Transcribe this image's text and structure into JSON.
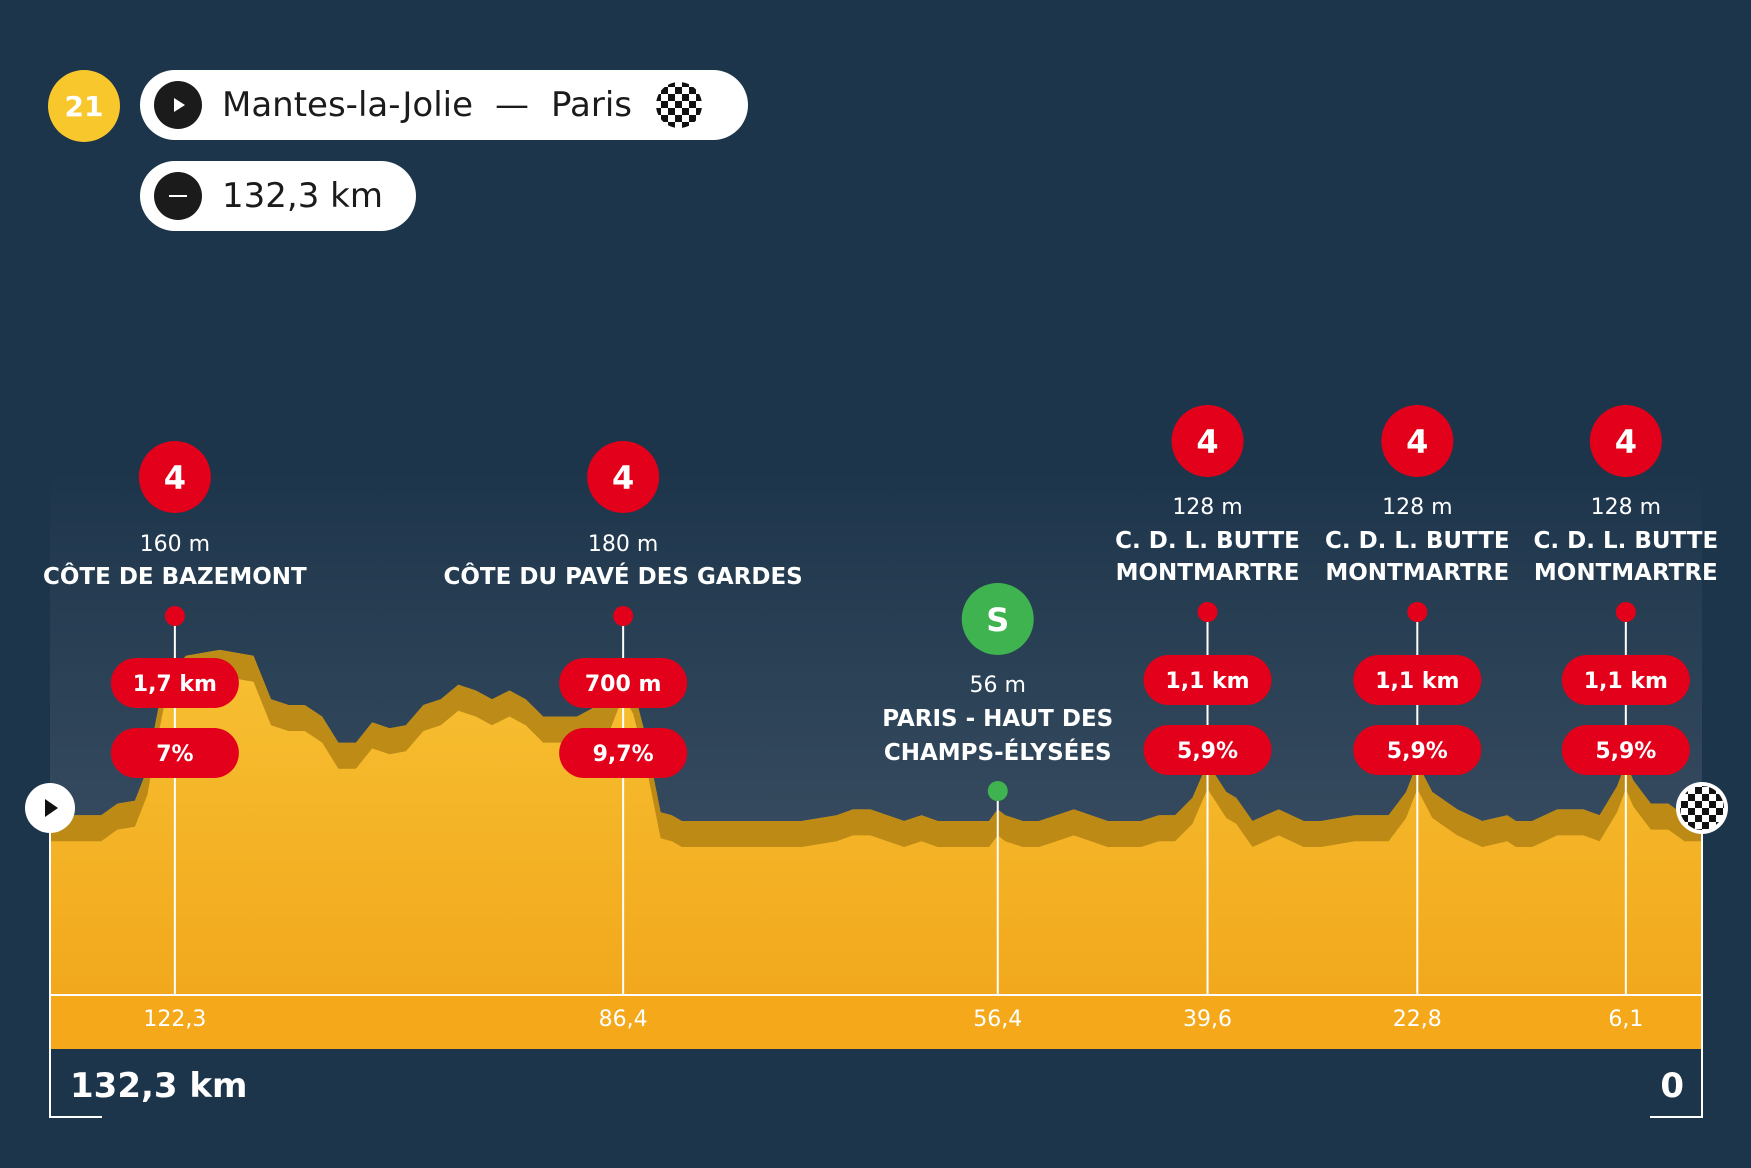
{
  "stage_number": "21",
  "route": {
    "start": "Mantes-la-Jolie",
    "separator": "—",
    "finish": "Paris",
    "distance": "132,3 km"
  },
  "colors": {
    "background": "#1d354b",
    "terrain": "#f4b324",
    "climb_marker": "#e2001a",
    "sprint_marker": "#3fb34f",
    "stage_badge": "#f7c72c"
  },
  "icons": {
    "start": "play-icon",
    "finish": "checkered-flag-icon",
    "distance": "distance-dash-icon"
  },
  "chart_data": {
    "type": "area",
    "title": "",
    "xlabel": "",
    "ylabel": "",
    "x_direction": "remaining distance (km), decreasing left to right",
    "xlim": [
      132.3,
      0
    ],
    "axis_end_labels": {
      "left": "132,3 km",
      "right": "0"
    },
    "ylim": [
      0,
      200
    ],
    "profile": {
      "name": "",
      "x": [
        132.3,
        130.9,
        128.2,
        126.9,
        125.5,
        124.5,
        123.8,
        123.1,
        122.3,
        121.4,
        118.7,
        116.0,
        114.6,
        113.2,
        111.9,
        110.5,
        109.2,
        107.8,
        106.5,
        105.1,
        103.8,
        102.4,
        101.0,
        99.6,
        98.2,
        96.9,
        95.5,
        94.2,
        92.8,
        91.5,
        90.1,
        88.8,
        87.4,
        86.4,
        85.6,
        84.7,
        83.4,
        82.5,
        81.7,
        80.2,
        77.5,
        74.8,
        72.1,
        69.3,
        68.0,
        66.6,
        63.9,
        62.5,
        61.2,
        59.8,
        58.5,
        57.1,
        56.4,
        55.8,
        54.4,
        53.1,
        51.7,
        50.3,
        47.6,
        44.9,
        43.5,
        42.2,
        40.8,
        39.6,
        38.1,
        37.3,
        36.0,
        33.9,
        31.9,
        30.5,
        27.8,
        25.1,
        23.7,
        22.8,
        21.6,
        19.6,
        17.6,
        15.6,
        14.9,
        13.6,
        11.6,
        9.5,
        8.2,
        6.8,
        6.1,
        5.5,
        4.1,
        2.7,
        1.4,
        0
      ],
      "y": [
        62,
        62,
        62,
        66,
        67,
        78,
        95,
        110,
        113,
        117,
        119,
        117,
        102,
        100,
        100,
        96,
        87,
        87,
        94,
        92,
        93,
        100,
        102,
        107,
        105,
        102,
        105,
        102,
        96,
        96,
        96,
        99,
        101,
        112,
        106,
        91,
        63,
        62,
        60,
        60,
        60,
        60,
        60,
        62,
        64,
        64,
        60,
        62,
        60,
        60,
        60,
        60,
        64,
        62,
        60,
        60,
        62,
        64,
        60,
        60,
        62,
        62,
        68,
        80,
        70,
        68,
        60,
        64,
        60,
        60,
        62,
        62,
        70,
        80,
        70,
        64,
        60,
        62,
        60,
        60,
        64,
        64,
        62,
        72,
        80,
        74,
        66,
        66,
        62,
        62
      ]
    },
    "climbs": [
      {
        "category": "4",
        "altitude": "160 m",
        "name": "CÔTE DE BAZEMONT",
        "length": "1,7 km",
        "gradient": "7%",
        "km_label": "122,3",
        "km": 122.3
      },
      {
        "category": "4",
        "altitude": "180 m",
        "name": "CÔTE DU PAVÉ DES GARDES",
        "length": "700 m",
        "gradient": "9,7%",
        "km_label": "86,4",
        "km": 86.4
      },
      {
        "category": "4",
        "altitude": "128 m",
        "name_line1": "C. D. L. BUTTE",
        "name_line2": "MONTMARTRE",
        "length": "1,1 km",
        "gradient": "5,9%",
        "km_label": "39,6",
        "km": 39.6
      },
      {
        "category": "4",
        "altitude": "128 m",
        "name_line1": "C. D. L. BUTTE",
        "name_line2": "MONTMARTRE",
        "length": "1,1 km",
        "gradient": "5,9%",
        "km_label": "22,8",
        "km": 22.8
      },
      {
        "category": "4",
        "altitude": "128 m",
        "name_line1": "C. D. L. BUTTE",
        "name_line2": "MONTMARTRE",
        "length": "1,1 km",
        "gradient": "5,9%",
        "km_label": "6,1",
        "km": 6.1
      }
    ],
    "sprint": {
      "badge": "S",
      "altitude": "56 m",
      "name_line1": "PARIS - HAUT DES",
      "name_line2": "CHAMPS-ÉLYSÉES",
      "km_label": "56,4",
      "km": 56.4
    }
  }
}
